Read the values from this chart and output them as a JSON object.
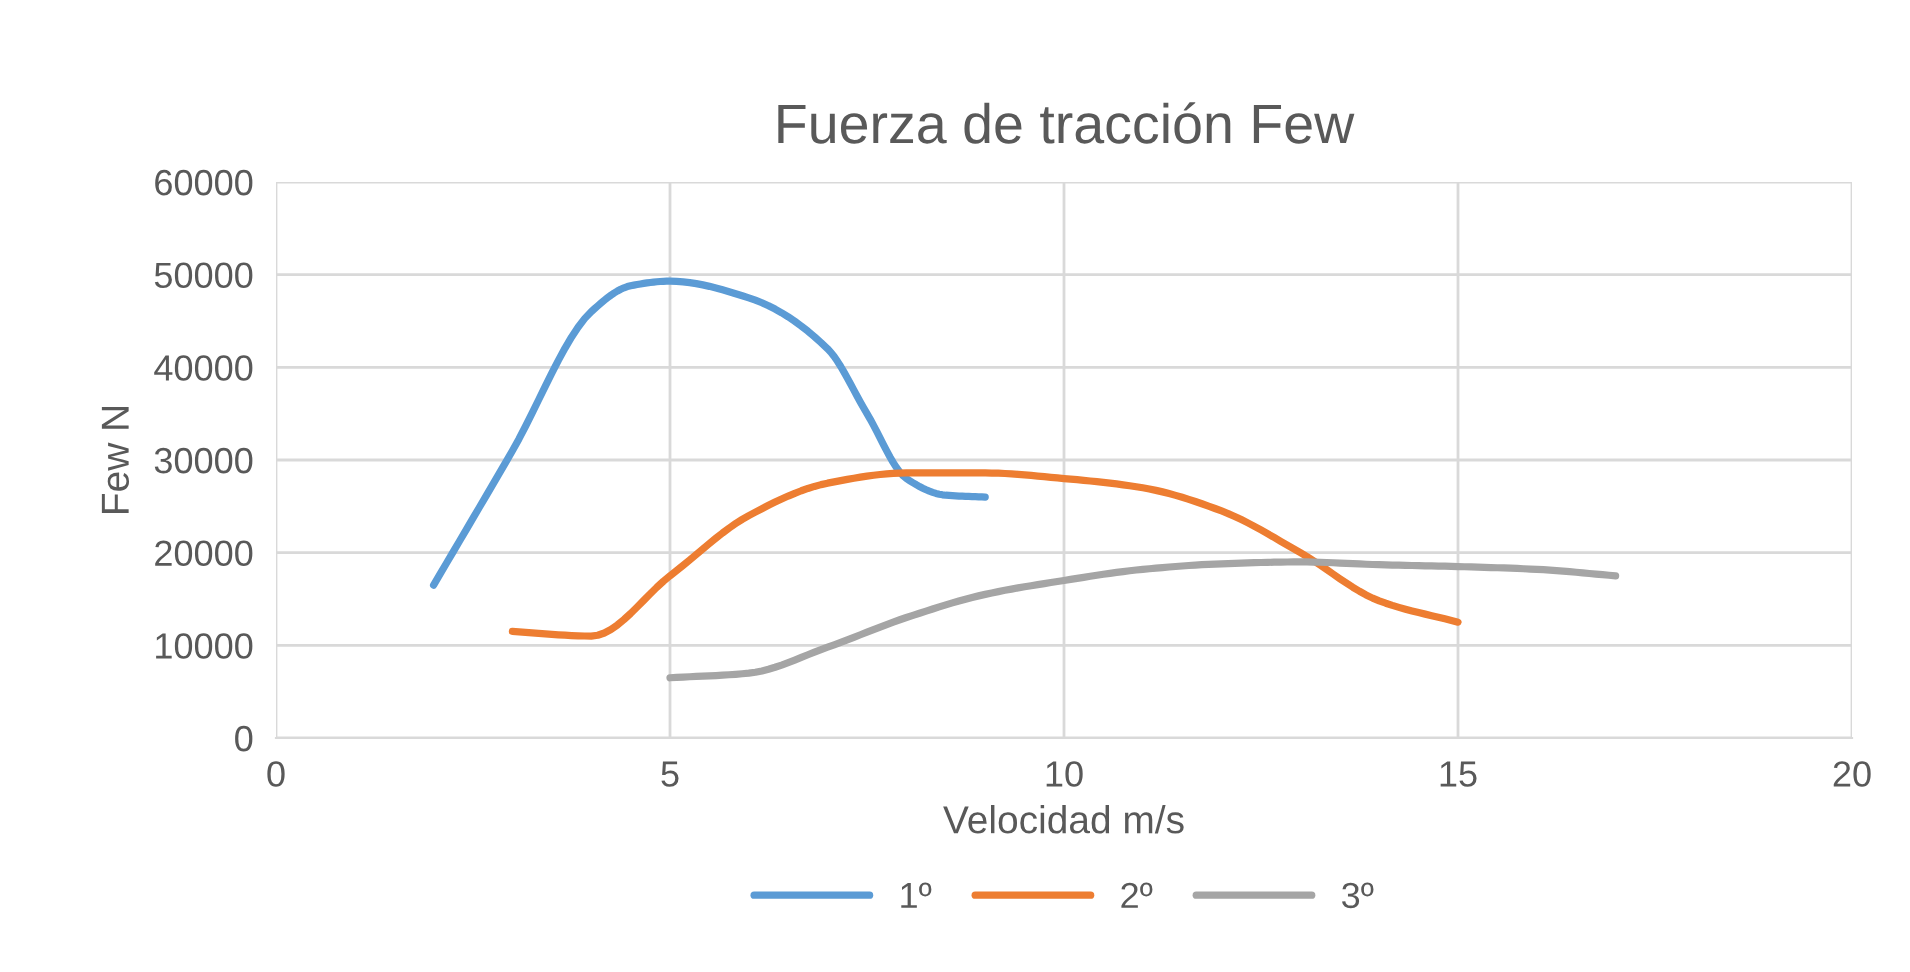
{
  "chart_data": {
    "type": "line",
    "title": "Fuerza de tracción Few",
    "xlabel": "Velocidad m/s",
    "ylabel": "Few N",
    "xlim": [
      0,
      20
    ],
    "xticks": [
      0,
      5,
      10,
      15,
      20
    ],
    "ylim": [
      0,
      60000
    ],
    "yticks": [
      0,
      10000,
      20000,
      30000,
      40000,
      50000,
      60000
    ],
    "grid": true,
    "legend": "bottom",
    "marker": "none",
    "line_style": "solid",
    "series": [
      {
        "name": "1º",
        "color": "#5b9bd5",
        "x": [
          2,
          3,
          4,
          4.5,
          5,
          6,
          7,
          7.5,
          8,
          8.5,
          9
        ],
        "values": [
          16500,
          31000,
          46000,
          48800,
          49300,
          47500,
          42000,
          35000,
          28000,
          26200,
          26000
        ]
      },
      {
        "name": "2º",
        "color": "#ed7d31",
        "x": [
          3,
          4,
          5,
          6,
          7,
          8,
          9,
          10,
          11,
          12,
          13,
          14,
          15
        ],
        "values": [
          11500,
          11000,
          17500,
          24000,
          27500,
          28600,
          28600,
          28000,
          27000,
          24500,
          20000,
          14800,
          12500
        ]
      },
      {
        "name": "3º",
        "color": "#a5a5a5",
        "x": [
          5,
          6,
          7,
          8,
          9,
          10,
          11,
          12,
          13,
          14,
          15,
          16,
          17
        ],
        "values": [
          6500,
          7000,
          9800,
          13000,
          15500,
          17000,
          18200,
          18800,
          19000,
          18700,
          18500,
          18200,
          17500
        ]
      }
    ]
  }
}
